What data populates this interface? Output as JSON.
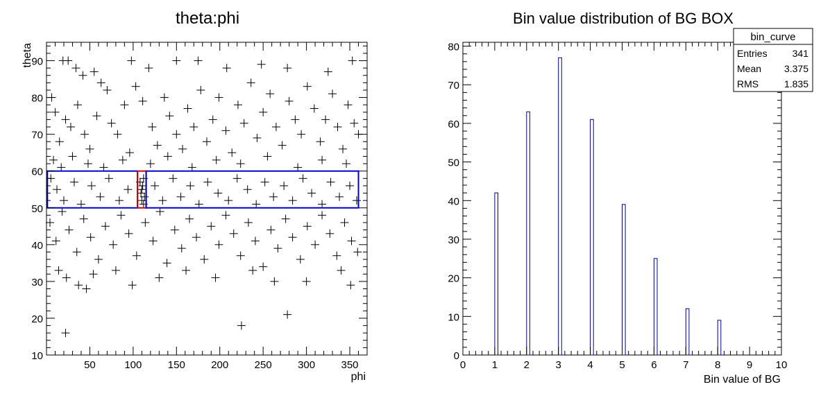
{
  "colors": {
    "box": "#0000cc",
    "signal_box": "#cc0000",
    "hist": "#000099",
    "marker": "#000000"
  },
  "chart_data": [
    {
      "type": "scatter",
      "title": "theta:phi",
      "xlabel": "phi",
      "ylabel": "theta",
      "xlim": [
        0,
        370
      ],
      "ylim": [
        10,
        95
      ],
      "xticks": [
        50,
        100,
        150,
        200,
        250,
        300,
        350
      ],
      "yticks": [
        10,
        20,
        30,
        40,
        50,
        60,
        70,
        80,
        90
      ],
      "grid": false,
      "boxes": [
        {
          "x": [
            1,
            105
          ],
          "y": [
            50,
            60
          ],
          "color": "#0000cc"
        },
        {
          "x": [
            105,
            115
          ],
          "y": [
            50,
            60
          ],
          "color": "#cc0000"
        },
        {
          "x": [
            115,
            360
          ],
          "y": [
            50,
            60
          ],
          "color": "#0000cc"
        }
      ],
      "points": [
        [
          19,
          90
        ],
        [
          25,
          90
        ],
        [
          34,
          88
        ],
        [
          42,
          86
        ],
        [
          55,
          87
        ],
        [
          70,
          82
        ],
        [
          98,
          90
        ],
        [
          118,
          88
        ],
        [
          150,
          90
        ],
        [
          175,
          90
        ],
        [
          208,
          88
        ],
        [
          248,
          89
        ],
        [
          278,
          88
        ],
        [
          325,
          87
        ],
        [
          353,
          90
        ],
        [
          6,
          80
        ],
        [
          10,
          76
        ],
        [
          15,
          68
        ],
        [
          22,
          74
        ],
        [
          28,
          72
        ],
        [
          36,
          78
        ],
        [
          44,
          70
        ],
        [
          50,
          66
        ],
        [
          58,
          75
        ],
        [
          63,
          84
        ],
        [
          75,
          73
        ],
        [
          82,
          70
        ],
        [
          90,
          78
        ],
        [
          96,
          65
        ],
        [
          103,
          83
        ],
        [
          111,
          79
        ],
        [
          122,
          72
        ],
        [
          128,
          67
        ],
        [
          136,
          80
        ],
        [
          142,
          75
        ],
        [
          150,
          70
        ],
        [
          157,
          66
        ],
        [
          163,
          77
        ],
        [
          170,
          72
        ],
        [
          178,
          82
        ],
        [
          185,
          68
        ],
        [
          192,
          74
        ],
        [
          199,
          80
        ],
        [
          207,
          71
        ],
        [
          214,
          65
        ],
        [
          221,
          78
        ],
        [
          228,
          73
        ],
        [
          236,
          84
        ],
        [
          243,
          69
        ],
        [
          250,
          76
        ],
        [
          258,
          81
        ],
        [
          265,
          72
        ],
        [
          272,
          67
        ],
        [
          280,
          79
        ],
        [
          287,
          74
        ],
        [
          294,
          70
        ],
        [
          301,
          83
        ],
        [
          309,
          77
        ],
        [
          316,
          68
        ],
        [
          322,
          74
        ],
        [
          330,
          81
        ],
        [
          336,
          72
        ],
        [
          342,
          66
        ],
        [
          348,
          78
        ],
        [
          355,
          73
        ],
        [
          360,
          70
        ],
        [
          8,
          63
        ],
        [
          17,
          61
        ],
        [
          30,
          64
        ],
        [
          48,
          62
        ],
        [
          66,
          61
        ],
        [
          88,
          63
        ],
        [
          120,
          62
        ],
        [
          140,
          64
        ],
        [
          168,
          61
        ],
        [
          196,
          63
        ],
        [
          224,
          62
        ],
        [
          255,
          64
        ],
        [
          290,
          61
        ],
        [
          318,
          63
        ],
        [
          346,
          62
        ],
        [
          5,
          58
        ],
        [
          12,
          55
        ],
        [
          20,
          52
        ],
        [
          32,
          57
        ],
        [
          40,
          51
        ],
        [
          52,
          56
        ],
        [
          62,
          53
        ],
        [
          72,
          58
        ],
        [
          84,
          52
        ],
        [
          94,
          55
        ],
        [
          108,
          57
        ],
        [
          109,
          54
        ],
        [
          110,
          52
        ],
        [
          111,
          56
        ],
        [
          112,
          58
        ],
        [
          113,
          53
        ],
        [
          110,
          55
        ],
        [
          112,
          51
        ],
        [
          125,
          56
        ],
        [
          134,
          52
        ],
        [
          146,
          58
        ],
        [
          155,
          53
        ],
        [
          166,
          56
        ],
        [
          176,
          51
        ],
        [
          186,
          57
        ],
        [
          198,
          54
        ],
        [
          210,
          52
        ],
        [
          220,
          58
        ],
        [
          232,
          55
        ],
        [
          242,
          51
        ],
        [
          252,
          57
        ],
        [
          262,
          53
        ],
        [
          274,
          56
        ],
        [
          284,
          52
        ],
        [
          296,
          58
        ],
        [
          306,
          54
        ],
        [
          318,
          51
        ],
        [
          328,
          57
        ],
        [
          338,
          53
        ],
        [
          350,
          56
        ],
        [
          358,
          52
        ],
        [
          4,
          46
        ],
        [
          11,
          41
        ],
        [
          18,
          49
        ],
        [
          26,
          44
        ],
        [
          35,
          38
        ],
        [
          43,
          47
        ],
        [
          51,
          42
        ],
        [
          60,
          36
        ],
        [
          68,
          45
        ],
        [
          77,
          40
        ],
        [
          86,
          48
        ],
        [
          95,
          43
        ],
        [
          104,
          37
        ],
        [
          114,
          46
        ],
        [
          123,
          41
        ],
        [
          131,
          49
        ],
        [
          139,
          35
        ],
        [
          148,
          44
        ],
        [
          156,
          39
        ],
        [
          165,
          47
        ],
        [
          173,
          42
        ],
        [
          182,
          36
        ],
        [
          190,
          45
        ],
        [
          199,
          40
        ],
        [
          207,
          48
        ],
        [
          216,
          43
        ],
        [
          224,
          37
        ],
        [
          233,
          46
        ],
        [
          241,
          41
        ],
        [
          250,
          34
        ],
        [
          259,
          44
        ],
        [
          267,
          39
        ],
        [
          276,
          47
        ],
        [
          284,
          42
        ],
        [
          293,
          36
        ],
        [
          301,
          45
        ],
        [
          310,
          40
        ],
        [
          318,
          48
        ],
        [
          327,
          43
        ],
        [
          335,
          37
        ],
        [
          344,
          46
        ],
        [
          352,
          41
        ],
        [
          359,
          38
        ],
        [
          14,
          33
        ],
        [
          23,
          31
        ],
        [
          37,
          29
        ],
        [
          54,
          32
        ],
        [
          80,
          33
        ],
        [
          99,
          29
        ],
        [
          130,
          31
        ],
        [
          161,
          33
        ],
        [
          195,
          31
        ],
        [
          238,
          33
        ],
        [
          263,
          30
        ],
        [
          300,
          30
        ],
        [
          340,
          33
        ],
        [
          351,
          29
        ],
        [
          46,
          28
        ],
        [
          22,
          16
        ],
        [
          225,
          18
        ],
        [
          278,
          21
        ]
      ]
    },
    {
      "type": "bar",
      "title": "Bin value distribution of BG BOX",
      "xlabel": "Bin value of BG",
      "ylabel": "",
      "xlim": [
        0,
        10
      ],
      "ylim": [
        0,
        81
      ],
      "xticks": [
        0,
        1,
        2,
        3,
        4,
        5,
        6,
        7,
        8,
        9,
        10
      ],
      "yticks": [
        0,
        10,
        20,
        30,
        40,
        50,
        60,
        70,
        80
      ],
      "grid": false,
      "categories": [
        1,
        2,
        3,
        4,
        5,
        6,
        7,
        8
      ],
      "values": [
        42,
        63,
        77,
        61,
        39,
        25,
        12,
        9
      ],
      "stats_box": {
        "title": "bin_curve",
        "rows": [
          {
            "label": "Entries",
            "value": "341"
          },
          {
            "label": "Mean",
            "value": "3.375"
          },
          {
            "label": "RMS",
            "value": "1.835"
          }
        ]
      }
    }
  ]
}
